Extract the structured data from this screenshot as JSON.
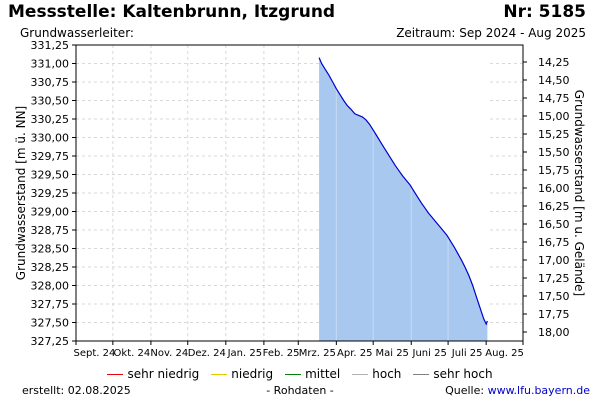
{
  "header": {
    "title": "Messstelle: Kaltenbrunn, Itzgrund",
    "nr": "Nr: 5185",
    "subtitle": "Grundwasserleiter:",
    "zeitraum": "Zeitraum: Sep 2024 - Aug 2025"
  },
  "chart_data": {
    "type": "area",
    "ylabel": "Grundwasserstand [m ü. NN]",
    "y2label": "Grundwasserstand [m u. Gelände]",
    "ylim": [
      327.25,
      331.25
    ],
    "y_ticks": [
      "327,25",
      "327,50",
      "327,75",
      "328,00",
      "328,25",
      "328,50",
      "328,75",
      "329,00",
      "329,25",
      "329,50",
      "329,75",
      "330,00",
      "330,25",
      "330,50",
      "330,75",
      "331,00",
      "331,25"
    ],
    "y2_ticks": [
      "14,25",
      "14,50",
      "14,75",
      "15,00",
      "15,25",
      "15,50",
      "15,75",
      "16,00",
      "16,25",
      "16,50",
      "16,75",
      "17,00",
      "17,25",
      "17,50",
      "17,75",
      "18,00"
    ],
    "x_ticks": [
      "Sept. 24",
      "Okt. 24",
      "Nov. 24",
      "Dez. 24",
      "Jan. 25",
      "Feb. 25",
      "Mrz. 25",
      "Apr. 25",
      "Mai 25",
      "Juni 25",
      "Juli 25",
      "Aug. 25"
    ],
    "xlim": [
      "2024-09-01",
      "2025-08-31"
    ],
    "grid": true,
    "series": [
      {
        "color": "#0000cc",
        "fill": "#a8c8f0",
        "x": [
          "2025-03-18",
          "2025-03-20",
          "2025-03-23",
          "2025-03-26",
          "2025-03-29",
          "2025-04-01",
          "2025-04-04",
          "2025-04-07",
          "2025-04-10",
          "2025-04-13",
          "2025-04-16",
          "2025-04-19",
          "2025-04-22",
          "2025-04-25",
          "2025-04-28",
          "2025-05-01",
          "2025-05-04",
          "2025-05-07",
          "2025-05-10",
          "2025-05-13",
          "2025-05-16",
          "2025-05-19",
          "2025-05-22",
          "2025-05-25",
          "2025-05-28",
          "2025-05-31",
          "2025-06-03",
          "2025-06-06",
          "2025-06-09",
          "2025-06-12",
          "2025-06-15",
          "2025-06-18",
          "2025-06-21",
          "2025-06-24",
          "2025-06-27",
          "2025-06-30",
          "2025-07-03",
          "2025-07-06",
          "2025-07-09",
          "2025-07-12",
          "2025-07-15",
          "2025-07-18",
          "2025-07-21",
          "2025-07-24",
          "2025-07-27",
          "2025-07-30",
          "2025-08-01",
          "2025-08-02"
        ],
        "values": [
          331.08,
          331.0,
          330.92,
          330.84,
          330.75,
          330.66,
          330.58,
          330.5,
          330.43,
          330.38,
          330.32,
          330.3,
          330.28,
          330.24,
          330.18,
          330.1,
          330.02,
          329.94,
          329.86,
          329.78,
          329.7,
          329.62,
          329.55,
          329.48,
          329.42,
          329.36,
          329.28,
          329.2,
          329.12,
          329.05,
          328.98,
          328.92,
          328.86,
          328.8,
          328.74,
          328.68,
          328.6,
          328.52,
          328.43,
          328.34,
          328.24,
          328.13,
          328.0,
          327.85,
          327.7,
          327.55,
          327.48,
          327.52
        ]
      }
    ]
  },
  "legend": {
    "items": [
      {
        "label": "sehr niedrig",
        "color": "#ee0000"
      },
      {
        "label": "niedrig",
        "color": "#e8c800"
      },
      {
        "label": "mittel",
        "color": "#008000"
      },
      {
        "label": "hoch",
        "color": "#b0b0b0"
      },
      {
        "label": "sehr hoch",
        "color": "#808080"
      }
    ]
  },
  "footer": {
    "created_label": "erstellt:",
    "created_date": "02.08.2025",
    "center": "- Rohdaten -",
    "source_label": "Quelle:",
    "source_link": "www.lfu.bayern.de"
  }
}
